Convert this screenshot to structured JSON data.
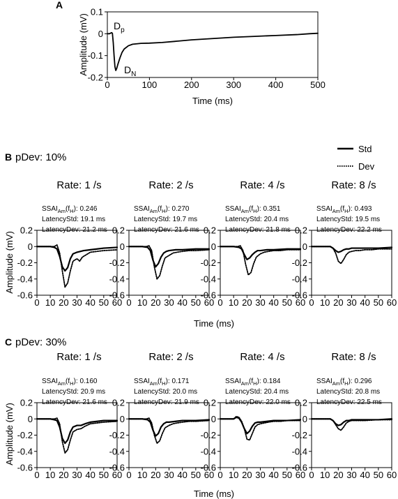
{
  "panel_a": {
    "letter": "A",
    "xlabel": "Time (ms)",
    "ylabel": "Amplitude (mV)",
    "peak_labels": {
      "p": "D",
      "p_sub": "p",
      "n": "D",
      "n_sub": "N"
    }
  },
  "legend": {
    "std": "Std",
    "dev": "Dev"
  },
  "panel_b": {
    "letter": "B",
    "pdev": "pDev: 10%"
  },
  "panel_c": {
    "letter": "C",
    "pdev": "pDev: 30%"
  },
  "small_xlabel": "Time (ms)",
  "small_ylabel": "Amplitude (mV)",
  "stat_text": {
    "ssai_prefix": "SSAI",
    "ssai_sub1": "Am",
    "ssai_mid": "(f",
    "ssai_sub2": "H",
    "ssai_suffix": "):",
    "latstd": "LatencyStd:",
    "latdev": "LatencyDev:"
  },
  "chart_data": [
    {
      "id": "A",
      "type": "line",
      "xlim": [
        0,
        500
      ],
      "ylim": [
        -0.2,
        0.1
      ],
      "xticks": [
        0,
        100,
        200,
        300,
        400,
        500
      ],
      "yticks": [
        0.1,
        0,
        -0.1,
        -0.2
      ],
      "ytick_labels": [
        "0.1",
        "0",
        "-0.1",
        "-0.2"
      ],
      "xlabel": "Time (ms)",
      "ylabel": "Amplitude (mV)",
      "series": [
        {
          "x": [
            0,
            5,
            8,
            10,
            12,
            14,
            16,
            18,
            20,
            22,
            25,
            30,
            35,
            40,
            50,
            60,
            80,
            100,
            130,
            160,
            200,
            250,
            300,
            350,
            400,
            450,
            480,
            500
          ],
          "y": [
            0,
            0,
            0.003,
            0.005,
            0.002,
            -0.04,
            -0.1,
            -0.15,
            -0.168,
            -0.16,
            -0.14,
            -0.11,
            -0.085,
            -0.07,
            -0.055,
            -0.048,
            -0.044,
            -0.043,
            -0.04,
            -0.035,
            -0.028,
            -0.022,
            -0.016,
            -0.012,
            -0.008,
            -0.004,
            0,
            0.002
          ]
        }
      ],
      "annotations": [
        {
          "text": "Dp",
          "x": 5,
          "y": 0.01
        },
        {
          "text": "DN",
          "x": 27,
          "y": -0.17
        }
      ]
    },
    {
      "id": "B1",
      "group": "B",
      "title": "Rate: 1 /s",
      "ssai": "0.246",
      "latency_std": "19.1 ms",
      "latency_dev": "21.2 ms",
      "type": "line",
      "xlim": [
        0,
        60
      ],
      "ylim": [
        -0.6,
        0.2
      ],
      "xticks": [
        0,
        10,
        20,
        30,
        40,
        50,
        60
      ],
      "yticks": [
        0.2,
        0,
        -0.2,
        -0.4,
        -0.6
      ],
      "ytick_labels": [
        "0.2",
        "0",
        "-0.2",
        "-0.4",
        "-0.6"
      ],
      "series": [
        {
          "name": "Std",
          "x": [
            0,
            10,
            13,
            15,
            17,
            19,
            21,
            23,
            25,
            27,
            30,
            35,
            40,
            45,
            50,
            60
          ],
          "y": [
            0,
            0,
            -0.01,
            -0.03,
            -0.12,
            -0.25,
            -0.3,
            -0.26,
            -0.15,
            -0.09,
            -0.07,
            -0.05,
            -0.04,
            -0.03,
            -0.02,
            -0.01
          ]
        },
        {
          "name": "Dev",
          "x": [
            0,
            10,
            13,
            15,
            17,
            19,
            21,
            23,
            25,
            27,
            30,
            32,
            34,
            37,
            40,
            45,
            50,
            60
          ],
          "y": [
            0,
            0,
            0,
            0.02,
            -0.08,
            -0.3,
            -0.5,
            -0.45,
            -0.3,
            -0.18,
            -0.15,
            -0.18,
            -0.13,
            -0.1,
            -0.07,
            -0.06,
            -0.05,
            -0.04
          ]
        }
      ]
    },
    {
      "id": "B2",
      "group": "B",
      "title": "Rate: 2 /s",
      "ssai": "0.270",
      "latency_std": "19.7 ms",
      "latency_dev": "21.6 ms",
      "type": "line",
      "xlim": [
        0,
        60
      ],
      "ylim": [
        -0.6,
        0.2
      ],
      "xticks": [
        0,
        10,
        20,
        30,
        40,
        50,
        60
      ],
      "yticks": [
        0.2,
        0,
        -0.2,
        -0.4,
        -0.6
      ],
      "ytick_labels": [
        "0.2",
        "0",
        "-0.2",
        "-0.4",
        "-0.6"
      ],
      "series": [
        {
          "name": "Std",
          "x": [
            0,
            10,
            14,
            16,
            18,
            20,
            22,
            24,
            26,
            28,
            30,
            35,
            40,
            50,
            60
          ],
          "y": [
            0,
            0,
            -0.01,
            -0.05,
            -0.17,
            -0.25,
            -0.21,
            -0.13,
            -0.08,
            -0.06,
            -0.05,
            -0.04,
            -0.04,
            -0.03,
            -0.03
          ]
        },
        {
          "name": "Dev",
          "x": [
            0,
            10,
            13,
            15,
            17,
            19,
            21,
            23,
            25,
            27,
            30,
            33,
            36,
            40,
            45,
            50,
            60
          ],
          "y": [
            0,
            0,
            0,
            0.01,
            -0.05,
            -0.25,
            -0.4,
            -0.36,
            -0.24,
            -0.14,
            -0.11,
            -0.08,
            -0.07,
            -0.06,
            -0.05,
            -0.05,
            -0.04
          ]
        }
      ]
    },
    {
      "id": "B3",
      "group": "B",
      "title": "Rate: 4 /s",
      "ssai": "0.351",
      "latency_std": "20.4 ms",
      "latency_dev": "21.8 ms",
      "type": "line",
      "xlim": [
        0,
        60
      ],
      "ylim": [
        -0.6,
        0.2
      ],
      "xticks": [
        0,
        10,
        20,
        30,
        40,
        50,
        60
      ],
      "yticks": [
        0.2,
        0,
        -0.2,
        -0.4,
        -0.6
      ],
      "ytick_labels": [
        "0.2",
        "0",
        "-0.2",
        "-0.4",
        "-0.6"
      ],
      "series": [
        {
          "name": "Std",
          "x": [
            0,
            10,
            14,
            16,
            18,
            20,
            22,
            24,
            26,
            28,
            30,
            35,
            40,
            50,
            60
          ],
          "y": [
            0,
            0,
            -0.01,
            -0.03,
            -0.1,
            -0.16,
            -0.14,
            -0.1,
            -0.07,
            -0.05,
            -0.05,
            -0.04,
            -0.04,
            -0.03,
            -0.03
          ]
        },
        {
          "name": "Dev",
          "x": [
            0,
            10,
            13,
            15,
            17,
            19,
            21,
            23,
            25,
            27,
            30,
            33,
            36,
            40,
            45,
            50,
            60
          ],
          "y": [
            0,
            0,
            0,
            0.01,
            -0.05,
            -0.22,
            -0.35,
            -0.32,
            -0.21,
            -0.13,
            -0.09,
            -0.07,
            -0.06,
            -0.05,
            -0.05,
            -0.04,
            -0.04
          ]
        }
      ]
    },
    {
      "id": "B4",
      "group": "B",
      "title": "Rate: 8 /s",
      "ssai": "0.493",
      "latency_std": "19.5 ms",
      "latency_dev": "22.2 ms",
      "type": "line",
      "xlim": [
        0,
        60
      ],
      "ylim": [
        -0.6,
        0.2
      ],
      "xticks": [
        0,
        10,
        20,
        30,
        40,
        50,
        60
      ],
      "yticks": [
        0.2,
        0,
        -0.2,
        -0.4,
        -0.6
      ],
      "ytick_labels": [
        "0.2",
        "0",
        "-0.2",
        "-0.4",
        "-0.6"
      ],
      "series": [
        {
          "name": "Std",
          "x": [
            0,
            10,
            14,
            16,
            18,
            20,
            22,
            24,
            26,
            28,
            30,
            35,
            40,
            50,
            60
          ],
          "y": [
            0,
            0,
            0,
            -0.02,
            -0.05,
            -0.07,
            -0.06,
            -0.04,
            -0.03,
            -0.03,
            -0.02,
            -0.02,
            -0.02,
            -0.02,
            -0.01
          ]
        },
        {
          "name": "Dev",
          "x": [
            0,
            10,
            14,
            16,
            18,
            20,
            22,
            24,
            26,
            28,
            30,
            33,
            36,
            40,
            45,
            50,
            60
          ],
          "y": [
            0,
            0,
            0,
            -0.02,
            -0.08,
            -0.18,
            -0.21,
            -0.16,
            -0.1,
            -0.07,
            -0.06,
            -0.05,
            -0.05,
            -0.04,
            -0.04,
            -0.03,
            -0.03
          ]
        }
      ]
    },
    {
      "id": "C1",
      "group": "C",
      "title": "Rate: 1 /s",
      "ssai": "0.160",
      "latency_std": "20.9 ms",
      "latency_dev": "21.6 ms",
      "type": "line",
      "xlim": [
        0,
        60
      ],
      "ylim": [
        -0.6,
        0.2
      ],
      "xticks": [
        0,
        10,
        20,
        30,
        40,
        50,
        60
      ],
      "yticks": [
        0.2,
        0,
        -0.2,
        -0.4,
        -0.6
      ],
      "ytick_labels": [
        "0.2",
        "0",
        "-0.2",
        "-0.4",
        "-0.6"
      ],
      "series": [
        {
          "name": "Std",
          "x": [
            0,
            10,
            13,
            15,
            17,
            19,
            21,
            23,
            25,
            27,
            30,
            33,
            36,
            40,
            45,
            50,
            60
          ],
          "y": [
            0,
            0,
            -0.01,
            -0.02,
            -0.1,
            -0.24,
            -0.3,
            -0.26,
            -0.16,
            -0.1,
            -0.08,
            -0.08,
            -0.06,
            -0.04,
            -0.03,
            -0.02,
            -0.02
          ]
        },
        {
          "name": "Dev",
          "x": [
            0,
            10,
            13,
            15,
            17,
            19,
            21,
            23,
            25,
            27,
            30,
            33,
            36,
            40,
            45,
            50,
            60
          ],
          "y": [
            0,
            0,
            0,
            0.01,
            -0.06,
            -0.28,
            -0.42,
            -0.38,
            -0.26,
            -0.16,
            -0.13,
            -0.12,
            -0.09,
            -0.06,
            -0.05,
            -0.04,
            -0.03
          ]
        }
      ]
    },
    {
      "id": "C2",
      "group": "C",
      "title": "Rate: 2 /s",
      "ssai": "0.171",
      "latency_std": "20.0 ms",
      "latency_dev": "21.9 ms",
      "type": "line",
      "xlim": [
        0,
        60
      ],
      "ylim": [
        -0.6,
        0.2
      ],
      "xticks": [
        0,
        10,
        20,
        30,
        40,
        50,
        60
      ],
      "yticks": [
        0.2,
        0,
        -0.2,
        -0.4,
        -0.6
      ],
      "ytick_labels": [
        "0.2",
        "0",
        "-0.2",
        "-0.4",
        "-0.6"
      ],
      "series": [
        {
          "name": "Std",
          "x": [
            0,
            10,
            14,
            16,
            18,
            20,
            22,
            24,
            26,
            28,
            30,
            35,
            40,
            50,
            60
          ],
          "y": [
            0,
            0,
            -0.01,
            -0.04,
            -0.14,
            -0.21,
            -0.18,
            -0.1,
            -0.06,
            -0.04,
            -0.04,
            -0.03,
            -0.02,
            -0.02,
            -0.01
          ]
        },
        {
          "name": "Dev",
          "x": [
            0,
            10,
            13,
            15,
            17,
            19,
            21,
            23,
            25,
            27,
            30,
            33,
            36,
            40,
            45,
            50,
            60
          ],
          "y": [
            0,
            0,
            0,
            0.01,
            -0.05,
            -0.2,
            -0.3,
            -0.27,
            -0.18,
            -0.11,
            -0.08,
            -0.06,
            -0.05,
            -0.04,
            -0.03,
            -0.03,
            -0.02
          ]
        }
      ]
    },
    {
      "id": "C3",
      "group": "C",
      "title": "Rate: 4 /s",
      "ssai": "0.184",
      "latency_std": "20.4 ms",
      "latency_dev": "22.0 ms",
      "type": "line",
      "xlim": [
        0,
        60
      ],
      "ylim": [
        -0.6,
        0.2
      ],
      "xticks": [
        0,
        10,
        20,
        30,
        40,
        50,
        60
      ],
      "yticks": [
        0.2,
        0,
        -0.2,
        -0.4,
        -0.6
      ],
      "ytick_labels": [
        "0.2",
        "0",
        "-0.2",
        "-0.4",
        "-0.6"
      ],
      "series": [
        {
          "name": "Std",
          "x": [
            0,
            10,
            12,
            14,
            16,
            18,
            20,
            22,
            24,
            26,
            28,
            30,
            35,
            40,
            50,
            60
          ],
          "y": [
            0,
            0,
            0.02,
            0.01,
            -0.04,
            -0.12,
            -0.18,
            -0.15,
            -0.09,
            -0.05,
            -0.04,
            -0.04,
            -0.03,
            -0.02,
            -0.02,
            -0.01
          ]
        },
        {
          "name": "Dev",
          "x": [
            0,
            10,
            12,
            14,
            16,
            18,
            20,
            22,
            24,
            26,
            28,
            30,
            33,
            36,
            40,
            45,
            50,
            60
          ],
          "y": [
            0,
            0,
            0.03,
            0.02,
            -0.03,
            -0.12,
            -0.25,
            -0.26,
            -0.18,
            -0.1,
            -0.07,
            -0.06,
            -0.05,
            -0.04,
            -0.03,
            -0.03,
            -0.02,
            -0.02
          ]
        }
      ]
    },
    {
      "id": "C4",
      "group": "C",
      "title": "Rate: 8 /s",
      "ssai": "0.296",
      "latency_std": "20.8 ms",
      "latency_dev": "22.5 ms",
      "type": "line",
      "xlim": [
        0,
        60
      ],
      "ylim": [
        -0.6,
        0.2
      ],
      "xticks": [
        0,
        10,
        20,
        30,
        40,
        50,
        60
      ],
      "yticks": [
        0.2,
        0,
        -0.2,
        -0.4,
        -0.6
      ],
      "ytick_labels": [
        "0.2",
        "0",
        "-0.2",
        "-0.4",
        "-0.6"
      ],
      "series": [
        {
          "name": "Std",
          "x": [
            0,
            10,
            14,
            16,
            18,
            20,
            22,
            24,
            26,
            28,
            30,
            35,
            40,
            50,
            60
          ],
          "y": [
            0,
            0,
            0,
            -0.02,
            -0.06,
            -0.08,
            -0.07,
            -0.04,
            -0.02,
            -0.02,
            -0.01,
            -0.01,
            -0.01,
            -0.01,
            0
          ]
        },
        {
          "name": "Dev",
          "x": [
            0,
            10,
            14,
            16,
            18,
            20,
            22,
            24,
            26,
            28,
            30,
            35,
            40,
            50,
            60
          ],
          "y": [
            0,
            0,
            0,
            -0.02,
            -0.07,
            -0.12,
            -0.14,
            -0.1,
            -0.05,
            -0.03,
            -0.02,
            -0.02,
            -0.02,
            -0.01,
            -0.01
          ]
        }
      ]
    }
  ]
}
